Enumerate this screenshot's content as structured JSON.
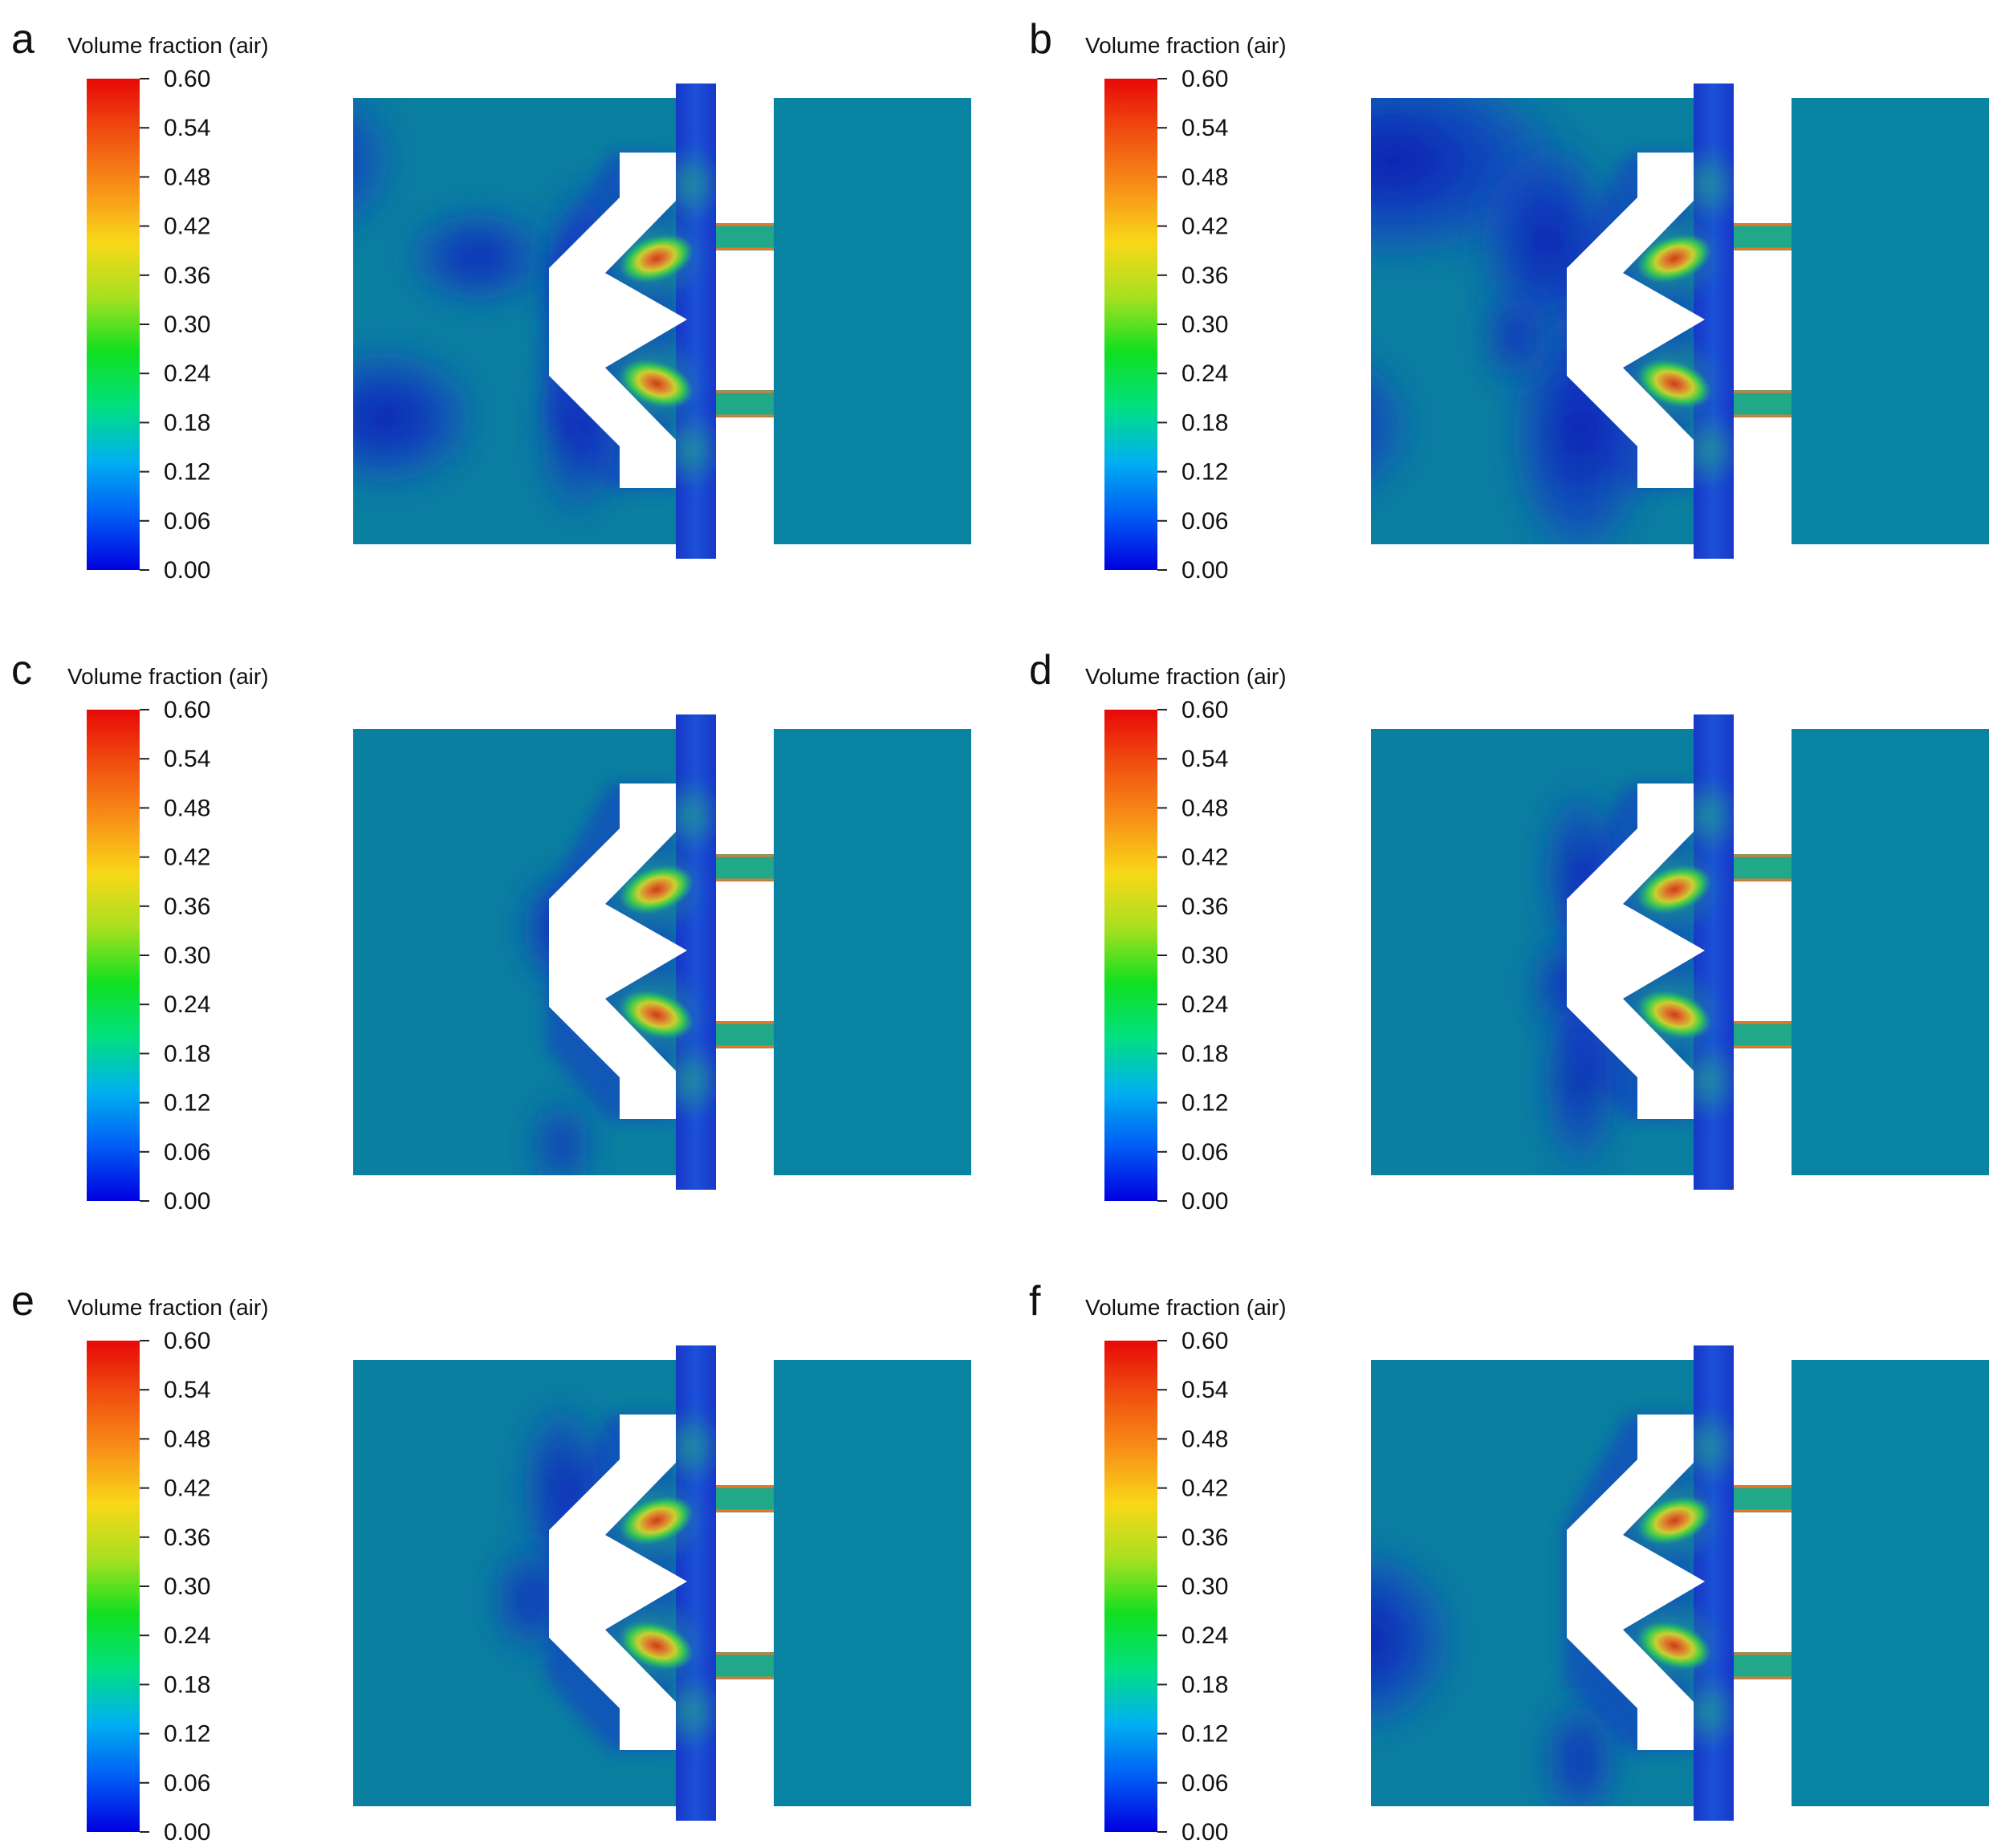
{
  "colorbar": {
    "title": "Volume fraction (air)",
    "ticks": [
      "0.60",
      "0.54",
      "0.48",
      "0.42",
      "0.36",
      "0.30",
      "0.24",
      "0.18",
      "0.12",
      "0.06",
      "0.00"
    ],
    "min": 0.0,
    "max": 0.6,
    "colors": [
      "#0000e0",
      "#005cf5",
      "#00b0f0",
      "#00e080",
      "#10e020",
      "#a8e020",
      "#f8d818",
      "#f89018",
      "#f05010",
      "#e80808"
    ]
  },
  "panels": [
    {
      "label": "a",
      "variant": "a"
    },
    {
      "label": "b",
      "variant": "b"
    },
    {
      "label": "c",
      "variant": "c"
    },
    {
      "label": "d",
      "variant": "d"
    },
    {
      "label": "e",
      "variant": "e"
    },
    {
      "label": "f",
      "variant": "f"
    }
  ],
  "field_colors": {
    "background": "#0a7fa0",
    "right_block": "#0883a2",
    "low": "#1838c8",
    "lowest": "#0818b0",
    "mid": "#20a888",
    "green": "#38c850",
    "yellow": "#c8d030",
    "orange": "#e07830",
    "core": "#c84010",
    "obstacle": "#ffffff"
  }
}
